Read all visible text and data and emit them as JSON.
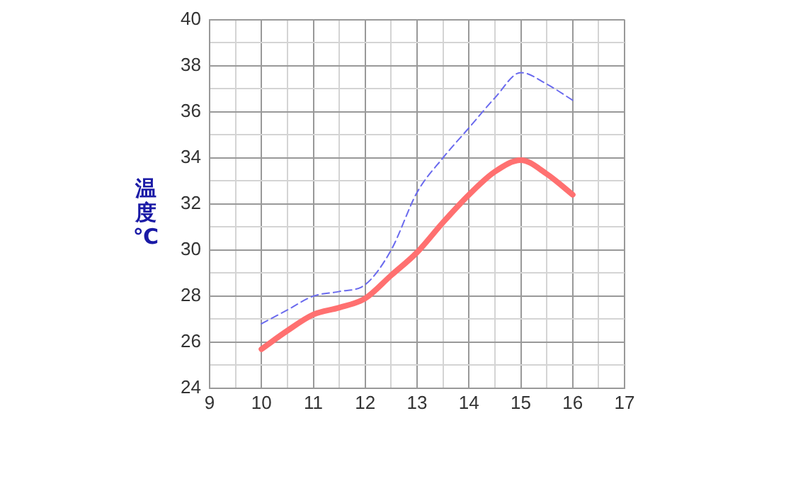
{
  "chart_data": {
    "type": "line",
    "ylabel": "温度℃",
    "x": [
      10,
      10.5,
      11,
      11.5,
      12,
      12.5,
      13,
      13.5,
      14,
      14.5,
      15,
      15.5,
      16
    ],
    "series": [
      {
        "color": "#6a6aee",
        "line_style": "dashed",
        "values": [
          26.8,
          27.4,
          28.0,
          28.2,
          28.5,
          30.0,
          32.5,
          34.0,
          35.3,
          36.6,
          37.7,
          37.2,
          36.5
        ]
      },
      {
        "color": "#ff7070",
        "line_style": "solid",
        "values": [
          25.7,
          26.5,
          27.2,
          27.5,
          27.9,
          28.9,
          29.9,
          31.2,
          32.4,
          33.4,
          33.9,
          33.3,
          32.4
        ]
      }
    ],
    "xlim": [
      9,
      17
    ],
    "xticks": [
      9,
      {
        "value": 9.5,
        "label": null
      },
      10,
      {
        "value": 10.5,
        "label": null
      },
      11,
      {
        "value": 11.5,
        "label": null
      },
      12,
      {
        "value": 12.5,
        "label": null
      },
      13,
      {
        "value": 13.5,
        "label": null
      },
      14,
      {
        "value": 14.5,
        "label": null
      },
      15,
      {
        "value": 15.5,
        "label": null
      },
      16,
      {
        "value": 16.5,
        "label": null
      },
      17
    ],
    "ylim": [
      24,
      40
    ],
    "yticks": [
      24,
      {
        "value": 25,
        "label": null
      },
      26,
      {
        "value": 27,
        "label": null
      },
      28,
      {
        "value": 29,
        "label": null
      },
      30,
      {
        "value": 31,
        "label": null
      },
      32,
      {
        "value": 33,
        "label": null
      },
      34,
      {
        "value": 35,
        "label": null
      },
      36,
      {
        "value": 37,
        "label": null
      },
      38,
      {
        "value": 39,
        "label": null
      },
      40
    ],
    "grid": true,
    "marker": "none",
    "legend": false
  }
}
